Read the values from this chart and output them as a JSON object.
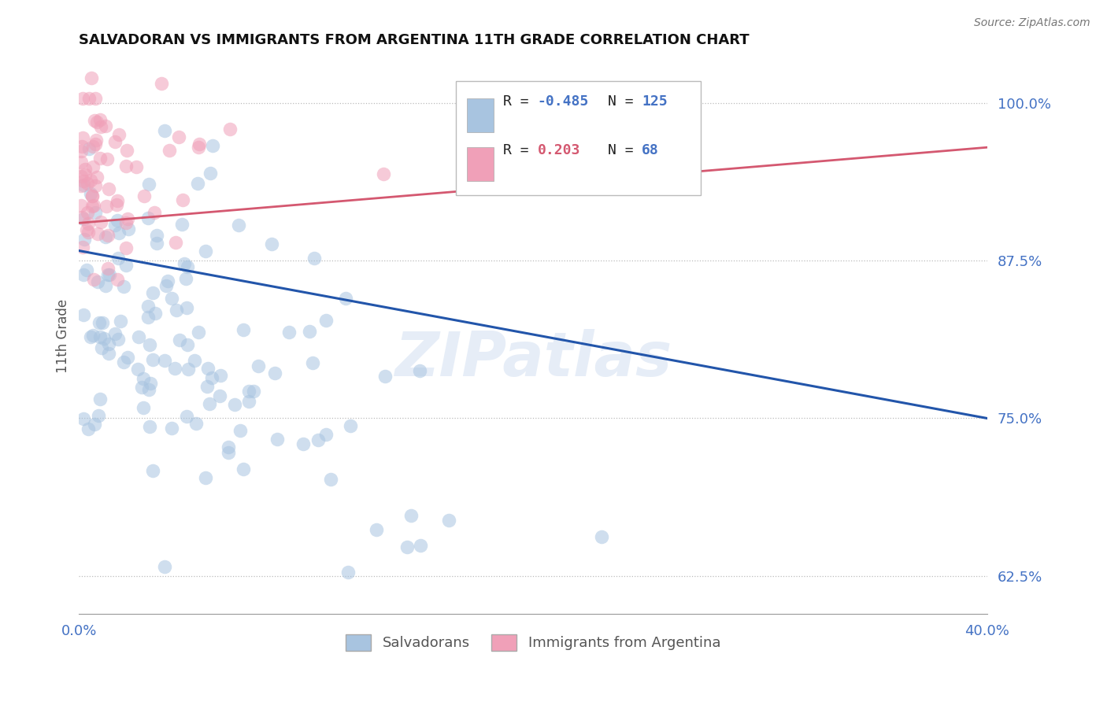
{
  "title": "SALVADORAN VS IMMIGRANTS FROM ARGENTINA 11TH GRADE CORRELATION CHART",
  "source_text": "Source: ZipAtlas.com",
  "ylabel": "11th Grade",
  "xlim": [
    0.0,
    0.4
  ],
  "ylim": [
    0.595,
    1.035
  ],
  "yticks": [
    0.625,
    0.75,
    0.875,
    1.0
  ],
  "ytick_labels": [
    "62.5%",
    "75.0%",
    "87.5%",
    "100.0%"
  ],
  "blue_color": "#a8c4e0",
  "pink_color": "#f0a0b8",
  "blue_line_color": "#2255aa",
  "pink_line_color": "#d45870",
  "R_blue": -0.485,
  "N_blue": 125,
  "R_pink": 0.203,
  "N_pink": 68,
  "legend_label_blue": "Salvadorans",
  "legend_label_pink": "Immigrants from Argentina",
  "watermark": "ZIPatlas",
  "blue_line_x0": 0.0,
  "blue_line_x1": 0.4,
  "blue_line_y0": 0.883,
  "blue_line_y1": 0.75,
  "pink_line_x0": 0.0,
  "pink_line_x1": 0.4,
  "pink_line_y0": 0.905,
  "pink_line_y1": 0.965
}
